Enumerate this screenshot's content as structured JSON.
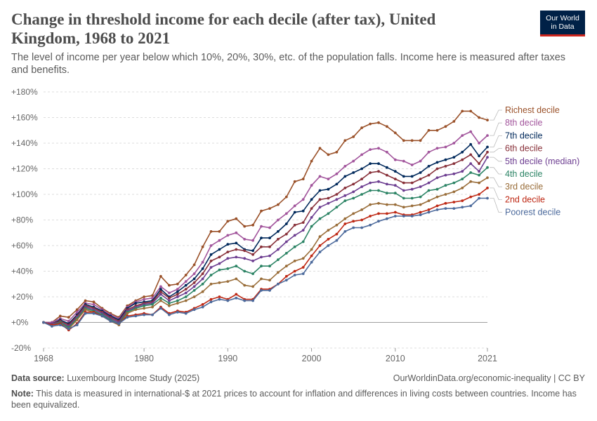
{
  "header": {
    "title": "Change in threshold income for each decile (after tax), United Kingdom, 1968 to 2021",
    "subtitle": "The level of income per year below which 10%, 20%, 30%, etc. of the population falls. Income here is measured after taxes and benefits."
  },
  "logo": {
    "line1": "Our World",
    "line2": "in Data"
  },
  "footer": {
    "source_label": "Data source:",
    "source_text": "Luxembourg Income Study (2025)",
    "url": "OurWorldinData.org/economic-inequality | CC BY",
    "note_label": "Note:",
    "note_text": "This data is measured in international-$ at 2021 prices to account for inflation and differences in living costs between countries. Income has been equivalized."
  },
  "chart_data": {
    "type": "line",
    "title": "Change in threshold income for each decile (after tax), United Kingdom, 1968 to 2021",
    "xlim": [
      1968,
      2021
    ],
    "ylim": [
      -20,
      180
    ],
    "x_ticks": [
      1968,
      1980,
      1990,
      2000,
      2010,
      2021
    ],
    "y_ticks": [
      -20,
      0,
      20,
      40,
      60,
      80,
      100,
      120,
      140,
      160,
      180
    ],
    "y_tick_labels": [
      "-20%",
      "+0%",
      "+20%",
      "+40%",
      "+60%",
      "+80%",
      "+100%",
      "+120%",
      "+140%",
      "+160%",
      "+180%"
    ],
    "grid": true,
    "legend_placement": "right",
    "x": [
      1968,
      1969,
      1970,
      1971,
      1972,
      1973,
      1974,
      1975,
      1976,
      1977,
      1978,
      1979,
      1980,
      1981,
      1982,
      1983,
      1984,
      1985,
      1986,
      1987,
      1988,
      1989,
      1990,
      1991,
      1992,
      1993,
      1994,
      1995,
      1996,
      1997,
      1998,
      1999,
      2000,
      2001,
      2002,
      2003,
      2004,
      2005,
      2006,
      2007,
      2008,
      2009,
      2010,
      2011,
      2012,
      2013,
      2014,
      2015,
      2016,
      2017,
      2018,
      2019,
      2020,
      2021
    ],
    "series": [
      {
        "name": "Richest decile",
        "color": "#9a5129",
        "values": [
          0,
          0,
          5,
          4,
          10,
          17,
          16,
          11,
          7,
          4,
          13,
          17,
          20,
          21,
          36,
          29,
          30,
          37,
          45,
          59,
          71,
          71,
          79,
          81,
          75,
          76,
          87,
          89,
          92,
          98,
          110,
          112,
          126,
          136,
          131,
          133,
          142,
          145,
          152,
          155,
          156,
          153,
          148,
          142,
          142,
          142,
          150,
          150,
          153,
          157,
          165,
          165,
          160,
          158
        ]
      },
      {
        "name": "8th decile",
        "color": "#a2559c",
        "values": [
          0,
          0,
          3,
          1,
          8,
          15,
          14,
          10,
          6,
          3,
          12,
          16,
          18,
          19,
          28,
          23,
          26,
          32,
          38,
          47,
          60,
          64,
          68,
          70,
          65,
          64,
          75,
          74,
          80,
          85,
          91,
          96,
          107,
          114,
          112,
          116,
          122,
          126,
          131,
          135,
          136,
          133,
          127,
          126,
          123,
          126,
          133,
          136,
          137,
          140,
          146,
          149,
          140,
          146
        ]
      },
      {
        "name": "7th decile",
        "color": "#00295b",
        "values": [
          0,
          -1,
          2,
          -1,
          6,
          14,
          12,
          9,
          5,
          2,
          11,
          15,
          16,
          17,
          26,
          20,
          24,
          29,
          34,
          42,
          53,
          57,
          61,
          62,
          57,
          56,
          66,
          66,
          71,
          77,
          86,
          87,
          96,
          103,
          104,
          108,
          114,
          117,
          120,
          124,
          124,
          121,
          118,
          114,
          114,
          117,
          122,
          125,
          127,
          129,
          133,
          139,
          130,
          137
        ]
      },
      {
        "name": "6th decile",
        "color": "#883039",
        "values": [
          0,
          -1,
          1,
          -2,
          5,
          13,
          11,
          8,
          4,
          1,
          10,
          13,
          15,
          16,
          24,
          19,
          22,
          26,
          31,
          38,
          48,
          51,
          55,
          57,
          56,
          53,
          59,
          59,
          65,
          69,
          76,
          78,
          89,
          96,
          97,
          100,
          105,
          108,
          112,
          117,
          118,
          115,
          112,
          109,
          109,
          112,
          115,
          120,
          122,
          124,
          127,
          131,
          124,
          133
        ]
      },
      {
        "name": "5th decile (median)",
        "color": "#6d3e91",
        "values": [
          0,
          -1,
          0,
          -3,
          4,
          12,
          10,
          7,
          3,
          0,
          9,
          12,
          14,
          15,
          22,
          17,
          20,
          23,
          28,
          34,
          43,
          46,
          50,
          51,
          50,
          48,
          51,
          52,
          57,
          63,
          68,
          72,
          82,
          90,
          93,
          96,
          99,
          102,
          106,
          109,
          110,
          108,
          107,
          103,
          104,
          106,
          109,
          113,
          115,
          116,
          118,
          124,
          118,
          129
        ]
      },
      {
        "name": "4th decile",
        "color": "#2c8465",
        "values": [
          0,
          -2,
          0,
          -4,
          3,
          11,
          9,
          6,
          2,
          -1,
          8,
          11,
          13,
          14,
          19,
          15,
          17,
          20,
          25,
          30,
          37,
          41,
          42,
          44,
          40,
          38,
          44,
          44,
          49,
          54,
          59,
          63,
          75,
          81,
          85,
          90,
          95,
          97,
          100,
          103,
          103,
          101,
          101,
          97,
          97,
          98,
          103,
          104,
          107,
          109,
          112,
          117,
          115,
          121
        ]
      },
      {
        "name": "3rd decile",
        "color": "#996d39",
        "values": [
          0,
          -2,
          -1,
          -5,
          2,
          10,
          8,
          5,
          1,
          -2,
          7,
          10,
          11,
          12,
          17,
          13,
          15,
          17,
          20,
          24,
          30,
          31,
          32,
          34,
          29,
          28,
          34,
          33,
          39,
          44,
          48,
          50,
          57,
          67,
          72,
          76,
          81,
          85,
          88,
          92,
          93,
          92,
          92,
          90,
          91,
          92,
          95,
          98,
          100,
          102,
          105,
          110,
          109,
          113
        ]
      },
      {
        "name": "2nd decile",
        "color": "#be2915",
        "values": [
          0,
          -2,
          -1,
          -6,
          -1,
          8,
          8,
          5,
          1,
          -1,
          5,
          6,
          7,
          6,
          12,
          7,
          9,
          8,
          11,
          14,
          18,
          20,
          18,
          22,
          18,
          18,
          26,
          26,
          30,
          36,
          40,
          43,
          52,
          60,
          65,
          69,
          77,
          79,
          80,
          83,
          85,
          85,
          86,
          84,
          84,
          86,
          88,
          91,
          93,
          94,
          95,
          98,
          100,
          105
        ]
      },
      {
        "name": "Poorest decile",
        "color": "#4c6a9c",
        "values": [
          0,
          -3,
          -2,
          -5,
          -2,
          7,
          7,
          5,
          1,
          -1,
          4,
          5,
          6,
          6,
          11,
          6,
          8,
          7,
          10,
          12,
          16,
          18,
          17,
          19,
          17,
          17,
          25,
          25,
          30,
          33,
          37,
          38,
          47,
          55,
          60,
          64,
          71,
          74,
          74,
          76,
          79,
          81,
          83,
          83,
          83,
          84,
          86,
          88,
          89,
          89,
          90,
          91,
          97,
          97
        ]
      }
    ]
  }
}
